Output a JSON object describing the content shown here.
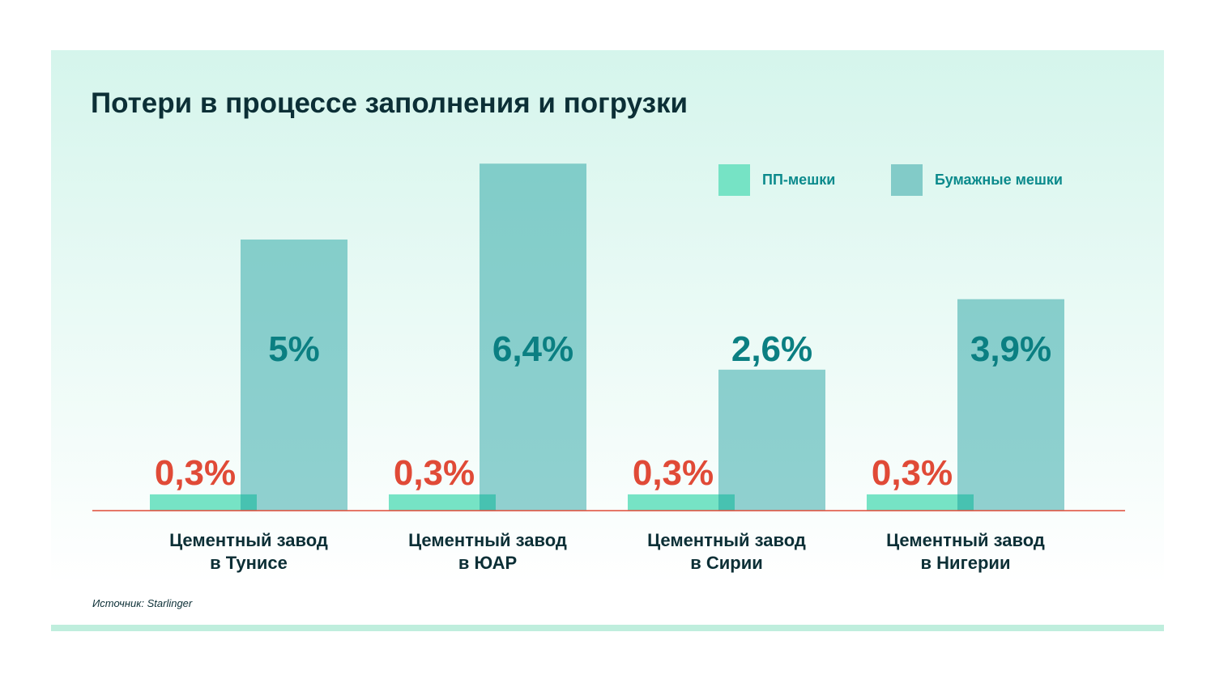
{
  "chart_data": {
    "type": "bar",
    "title": "Потери в процессе заполнения и погрузки",
    "categories": [
      [
        "Цементный завод",
        "в Тунисе"
      ],
      [
        "Цементный завод",
        "в ЮАР"
      ],
      [
        "Цементный завод",
        "в Сирии"
      ],
      [
        "Цементный завод",
        "в Нигерии"
      ]
    ],
    "series": [
      {
        "name": "ПП-мешки",
        "values": [
          0.3,
          0.3,
          0.3,
          0.3
        ],
        "labels": [
          "0,3%",
          "0,3%",
          "0,3%",
          "0,3%"
        ],
        "color": "#76e3c5",
        "label_color": "#e04a37"
      },
      {
        "name": "Бумажные мешки",
        "values": [
          5,
          6.4,
          2.6,
          3.9
        ],
        "labels": [
          "5%",
          "6,4%",
          "2,6%",
          "3,9%"
        ],
        "color": "#0f9a9a",
        "label_color": "#0b7f82"
      }
    ],
    "unit": "%",
    "ylim": [
      0,
      6.5
    ],
    "grid": false,
    "legend": "top-right",
    "baseline_color": "#e04a37",
    "source": "Источник: Starlinger"
  }
}
